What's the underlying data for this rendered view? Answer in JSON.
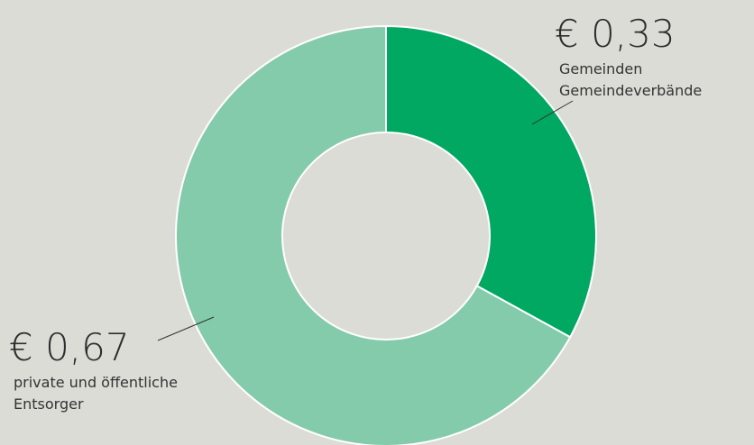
{
  "chart_data": {
    "type": "donut",
    "categories": [
      [
        "Gemeinden",
        "Gemeindeverbände"
      ],
      [
        "private und öffentliche",
        "Entsorger"
      ]
    ],
    "values": [
      0.33,
      0.67
    ],
    "value_labels": [
      "€ 0,33",
      "€ 0,67"
    ],
    "colors": [
      "#00a862",
      "#83cbab"
    ]
  }
}
